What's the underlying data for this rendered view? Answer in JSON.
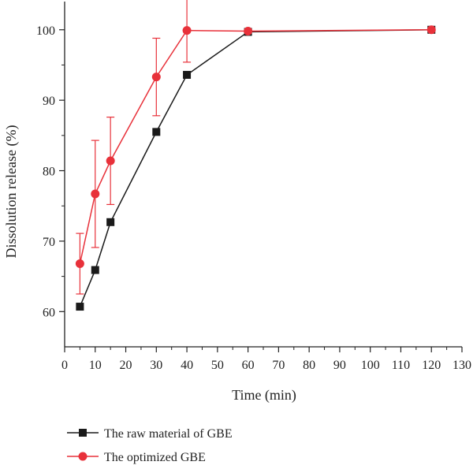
{
  "chart_data": {
    "type": "line",
    "xlabel": "Time (min)",
    "ylabel": "Dissolution release (%)",
    "xlim": [
      0,
      130
    ],
    "ylim": [
      55,
      104
    ],
    "xticks": [
      0,
      10,
      20,
      30,
      40,
      50,
      60,
      70,
      80,
      90,
      100,
      110,
      120,
      130
    ],
    "yticks": [
      60,
      70,
      80,
      90,
      100
    ],
    "grid": false,
    "legend_position": "bottom-left, below plot",
    "series": [
      {
        "name": "The raw material of GBE",
        "marker": "square",
        "color": "#1a1a1a",
        "x": [
          5,
          10,
          15,
          30,
          40,
          60,
          120
        ],
        "y": [
          60.7,
          65.9,
          72.7,
          85.5,
          93.6,
          99.7,
          100
        ]
      },
      {
        "name": "The optimized GBE",
        "marker": "circle",
        "color": "#e8313a",
        "x": [
          5,
          10,
          15,
          30,
          40,
          60,
          120
        ],
        "y": [
          66.8,
          76.7,
          81.4,
          93.3,
          99.9,
          99.8,
          100
        ],
        "error": [
          4.3,
          7.6,
          6.2,
          5.5,
          4.5,
          0,
          0
        ]
      }
    ]
  }
}
